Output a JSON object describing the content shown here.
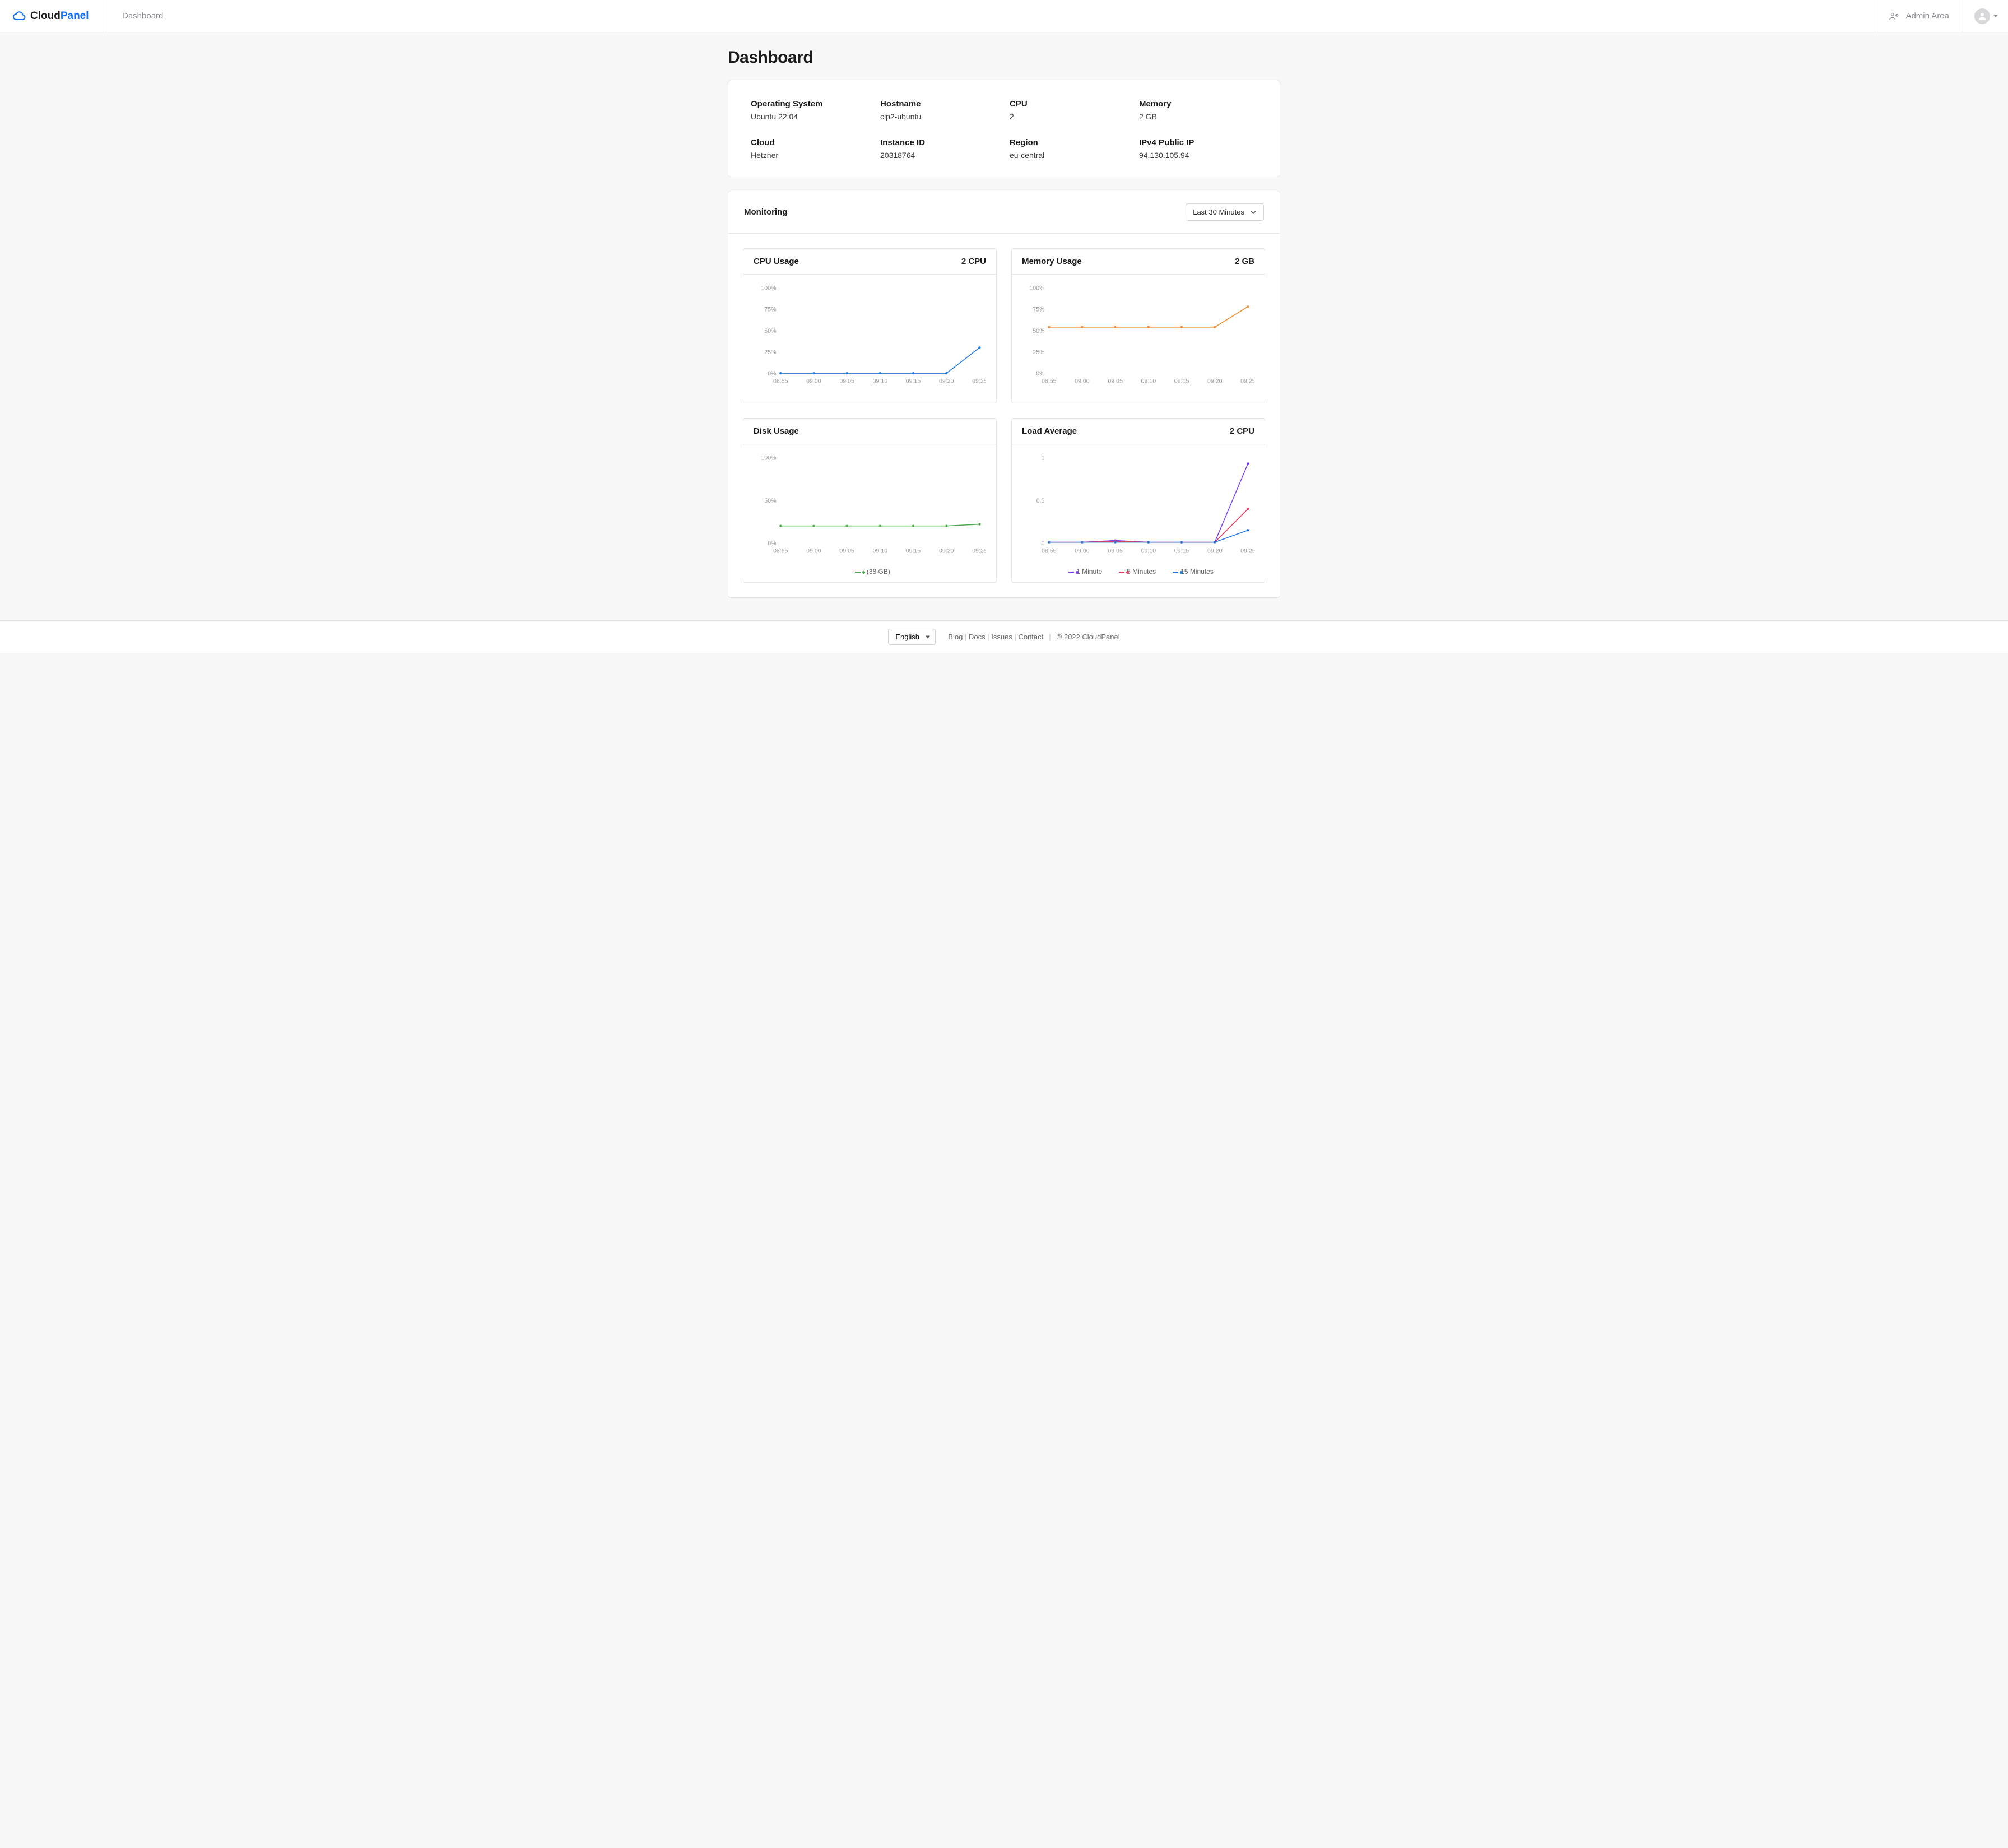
{
  "brand": {
    "part1": "Cloud",
    "part2": "Panel"
  },
  "colors": {
    "accent": "#0d6efd",
    "text_muted": "#8a8a90",
    "border": "#e6e6e8",
    "grid": "#f0f0f2",
    "axis_label": "#9a9a9e",
    "bg": "#f7f7f8"
  },
  "topnav": {
    "dashboard": "Dashboard",
    "admin_area": "Admin Area"
  },
  "page_title": "Dashboard",
  "info": [
    {
      "label": "Operating System",
      "value": "Ubuntu 22.04"
    },
    {
      "label": "Hostname",
      "value": "clp2-ubuntu"
    },
    {
      "label": "CPU",
      "value": "2"
    },
    {
      "label": "Memory",
      "value": "2 GB"
    },
    {
      "label": "Cloud",
      "value": "Hetzner"
    },
    {
      "label": "Instance ID",
      "value": "20318764"
    },
    {
      "label": "Region",
      "value": "eu-central"
    },
    {
      "label": "IPv4 Public IP",
      "value": "94.130.105.94"
    }
  ],
  "monitoring": {
    "title": "Monitoring",
    "range_label": "Last 30 Minutes",
    "charts": {
      "cpu": {
        "type": "line",
        "title": "CPU Usage",
        "subtitle": "2 CPU",
        "x_labels": [
          "08:55",
          "09:00",
          "09:05",
          "09:10",
          "09:15",
          "09:20",
          "09:25"
        ],
        "y_ticks": [
          0,
          25,
          50,
          75,
          100
        ],
        "y_unit": "%",
        "ylim": [
          0,
          100
        ],
        "series": [
          {
            "name": "cpu",
            "color": "#1f77e4",
            "marker_color": "#1f77e4",
            "values": [
              0,
              0,
              0,
              0,
              0,
              0,
              30
            ]
          }
        ]
      },
      "memory": {
        "type": "line",
        "title": "Memory Usage",
        "subtitle": "2 GB",
        "x_labels": [
          "08:55",
          "09:00",
          "09:05",
          "09:10",
          "09:15",
          "09:20",
          "09:25"
        ],
        "y_ticks": [
          0,
          25,
          50,
          75,
          100
        ],
        "y_unit": "%",
        "ylim": [
          0,
          100
        ],
        "series": [
          {
            "name": "mem",
            "color": "#f28b2b",
            "marker_color": "#f28b2b",
            "values": [
              54,
              54,
              54,
              54,
              54,
              54,
              78
            ]
          }
        ]
      },
      "disk": {
        "type": "line",
        "title": "Disk Usage",
        "subtitle": "",
        "x_labels": [
          "08:55",
          "09:00",
          "09:05",
          "09:10",
          "09:15",
          "09:20",
          "09:25"
        ],
        "y_ticks": [
          0,
          50,
          100
        ],
        "y_unit": "%",
        "ylim": [
          0,
          100
        ],
        "series": [
          {
            "name": "/ (38 GB)",
            "color": "#4aa64a",
            "marker_color": "#4aa64a",
            "values": [
              20,
              20,
              20,
              20,
              20,
              20,
              22
            ]
          }
        ],
        "legend": [
          "/ (38 GB)"
        ]
      },
      "load": {
        "type": "line",
        "title": "Load Average",
        "subtitle": "2 CPU",
        "x_labels": [
          "08:55",
          "09:00",
          "09:05",
          "09:10",
          "09:15",
          "09:20",
          "09:25"
        ],
        "y_ticks": [
          0,
          0.5,
          1
        ],
        "y_unit": "",
        "ylim": [
          0,
          1
        ],
        "series": [
          {
            "name": "1 Minute",
            "color": "#7b3ff2",
            "marker_color": "#7b3ff2",
            "values": [
              0.01,
              0.01,
              0.03,
              0.01,
              0.01,
              0.01,
              0.93
            ]
          },
          {
            "name": "5 Minutes",
            "color": "#e6395f",
            "marker_color": "#e6395f",
            "values": [
              0.01,
              0.01,
              0.02,
              0.01,
              0.01,
              0.01,
              0.4
            ]
          },
          {
            "name": "15 Minutes",
            "color": "#1f77e4",
            "marker_color": "#1f77e4",
            "values": [
              0.01,
              0.01,
              0.01,
              0.01,
              0.01,
              0.01,
              0.15
            ]
          }
        ],
        "legend": [
          "1 Minute",
          "5 Minutes",
          "15 Minutes"
        ]
      }
    }
  },
  "footer": {
    "language": "English",
    "links": [
      "Blog",
      "Docs",
      "Issues",
      "Contact"
    ],
    "copyright": "© 2022  CloudPanel"
  }
}
